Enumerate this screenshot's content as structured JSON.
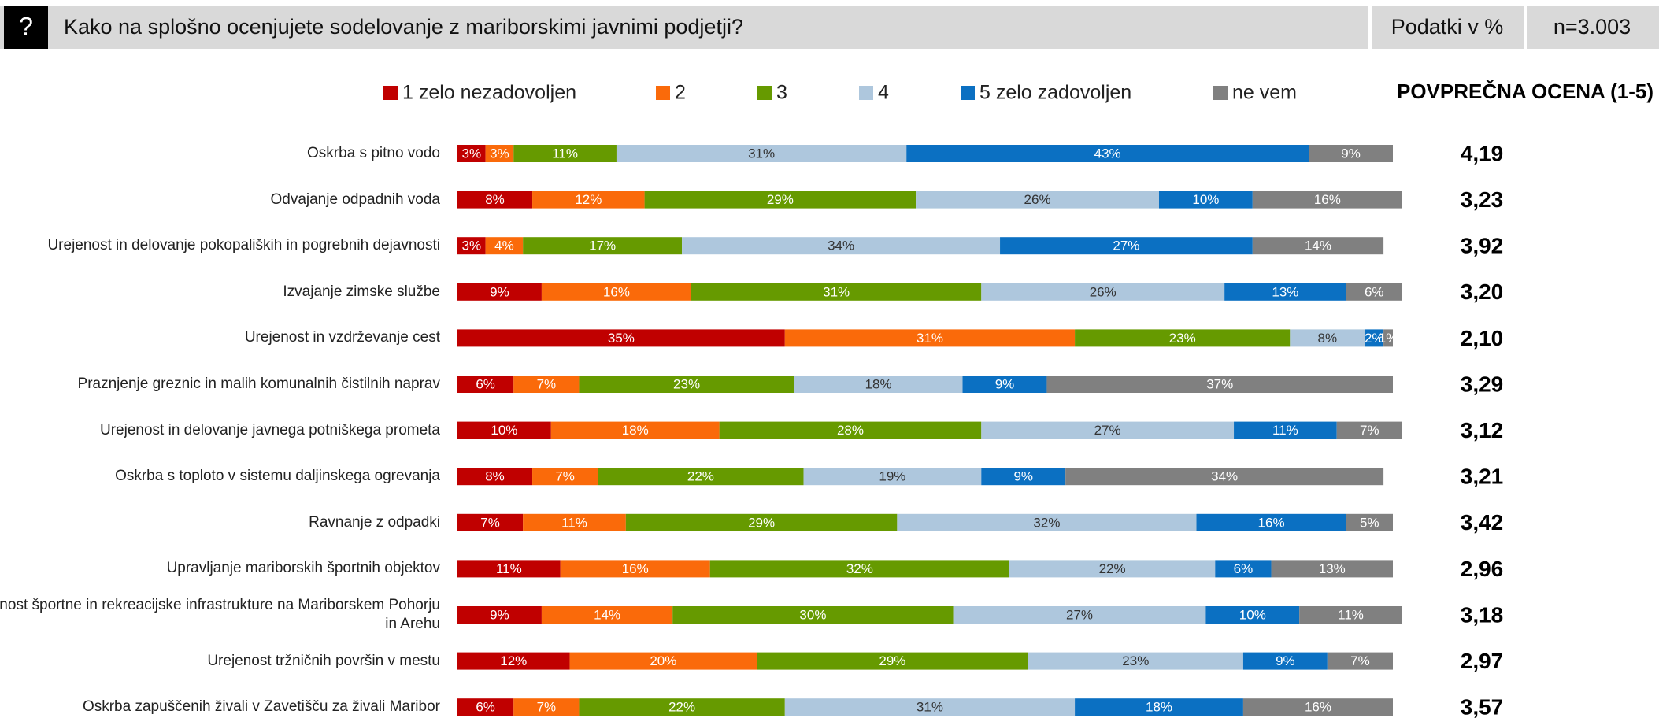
{
  "chart_data": {
    "type": "stacked-bar-horizontal",
    "icon": "?",
    "title": "Kako na splošno ocenjujete sodelovanje z mariborskimi javnimi podjetji?",
    "data_unit": "Podatki v %",
    "sample": "n=3.003",
    "average_title": "POVPREČNA OCENA (1-5)",
    "xlim": [
      0,
      100
    ],
    "categories": [
      "Oskrba s pitno vodo",
      "Odvajanje odpadnih voda",
      "Urejenost in delovanje pokopaliških in pogrebnih dejavnosti",
      "Izvajanje zimske službe",
      "Urejenost in vzdrževanje cest",
      "Praznjenje greznic in malih komunalnih čistilnih naprav",
      "Urejenost in delovanje javnega potniškega prometa",
      "Oskrba s toploto v sistemu daljinskega ogrevanja",
      "Ravnanje z odpadki",
      "Upravljanje mariborskih športnih objektov",
      "Urejenost športne in rekreacijske infrastrukture na Mariborskem Pohorju in Arehu",
      "Urejenost tržničnih površin v mestu",
      "Oskrba zapuščenih živali v Zavetišču za živali Maribor"
    ],
    "series": [
      {
        "name": "1 zelo nezadovoljen",
        "color": "#c00000",
        "values": [
          3,
          8,
          3,
          9,
          35,
          6,
          10,
          8,
          7,
          11,
          9,
          12,
          6
        ],
        "value_labels": [
          "3%",
          "8%",
          "3%",
          "9%",
          "35%",
          "6%",
          "10%",
          "8%",
          "7%",
          "11%",
          "9%",
          "12%",
          "6%"
        ]
      },
      {
        "name": "2",
        "color": "#fa6a0a",
        "values": [
          3,
          12,
          4,
          16,
          31,
          7,
          18,
          7,
          11,
          16,
          14,
          20,
          7
        ],
        "value_labels": [
          "3%",
          "12%",
          "4%",
          "16%",
          "31%",
          "7%",
          "18%",
          "7%",
          "11%",
          "16%",
          "14%",
          "20%",
          "7%"
        ]
      },
      {
        "name": "3",
        "color": "#669a00",
        "values": [
          11,
          29,
          17,
          31,
          23,
          23,
          28,
          22,
          29,
          32,
          30,
          29,
          22
        ],
        "value_labels": [
          "11%",
          "29%",
          "17%",
          "31%",
          "23%",
          "23%",
          "28%",
          "22%",
          "29%",
          "32%",
          "30%",
          "29%",
          "22%"
        ]
      },
      {
        "name": "4",
        "color": "#aec7dd",
        "values": [
          31,
          26,
          34,
          26,
          8,
          18,
          27,
          19,
          32,
          22,
          27,
          23,
          31
        ],
        "value_labels": [
          "31%",
          "26%",
          "34%",
          "26%",
          "8%",
          "18%",
          "27%",
          "19%",
          "32%",
          "22%",
          "27%",
          "23%",
          "31%"
        ]
      },
      {
        "name": "5 zelo zadovoljen",
        "color": "#0b70c2",
        "values": [
          43,
          10,
          27,
          13,
          2,
          9,
          11,
          9,
          16,
          6,
          10,
          9,
          18
        ],
        "value_labels": [
          "43%",
          "10%",
          "27%",
          "13%",
          "2%",
          "9%",
          "11%",
          "9%",
          "16%",
          "6%",
          "10%",
          "9%",
          "18%"
        ]
      },
      {
        "name": "ne vem",
        "color": "#808080",
        "values": [
          9,
          16,
          14,
          6,
          1,
          37,
          7,
          34,
          5,
          13,
          11,
          7,
          16
        ],
        "value_labels": [
          "9%",
          "16%",
          "14%",
          "6%",
          "1%",
          "37%",
          "7%",
          "34%",
          "5%",
          "13%",
          "11%",
          "7%",
          "16%"
        ]
      }
    ],
    "averages": {
      "values": [
        4.19,
        3.23,
        3.92,
        3.2,
        2.1,
        3.29,
        3.12,
        3.21,
        3.42,
        2.96,
        3.18,
        2.97,
        3.57
      ],
      "value_labels": [
        "4,19",
        "3,23",
        "3,92",
        "3,20",
        "2,10",
        "3,29",
        "3,12",
        "3,21",
        "3,42",
        "2,96",
        "3,18",
        "2,97",
        "3,57"
      ]
    }
  }
}
